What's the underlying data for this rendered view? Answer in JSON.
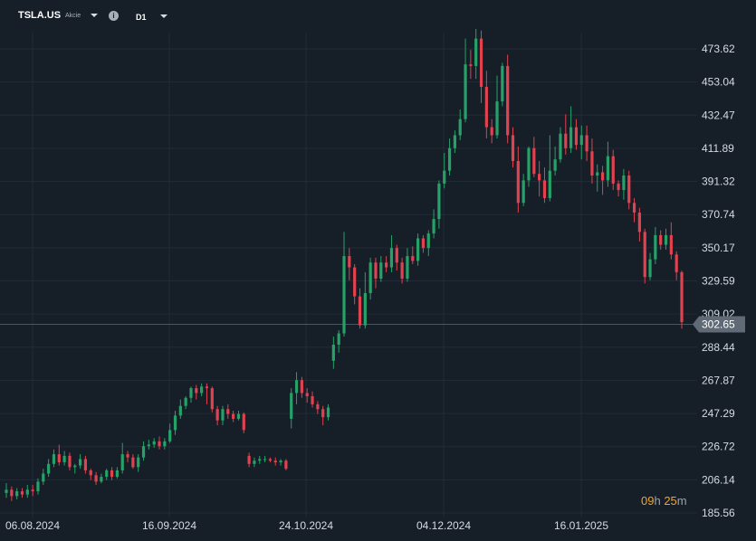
{
  "header": {
    "symbol": "TSLA.US",
    "symbol_type": "Akcie",
    "info_icon": "info-icon",
    "timeframe": "D1"
  },
  "price_tag": {
    "value": "302.65",
    "color": "#5f6a76"
  },
  "countdown": {
    "hours": "09",
    "hours_unit": "h",
    "minutes": "25",
    "minutes_unit": "m"
  },
  "colors": {
    "up": "#26a269",
    "down": "#e0424f",
    "background": "#161e27",
    "grid": "#222c37",
    "text": "#d5dbe2"
  },
  "chart_data": {
    "type": "candlestick",
    "ylim": [
      185.56,
      490
    ],
    "y_ticks": [
      "473.62",
      "453.04",
      "432.47",
      "411.89",
      "391.32",
      "370.74",
      "350.17",
      "329.59",
      "309.02",
      "288.44",
      "267.87",
      "247.29",
      "226.72",
      "206.14",
      "185.56"
    ],
    "x_ticks": [
      "06.08.2024",
      "16.09.2024",
      "24.10.2024",
      "04.12.2024",
      "16.01.2025"
    ],
    "candles": [
      [
        198,
        200,
        204,
        195
      ],
      [
        200,
        196,
        202,
        193
      ],
      [
        196,
        199,
        201,
        194
      ],
      [
        199,
        197,
        201,
        195
      ],
      [
        197,
        200,
        203,
        195
      ],
      [
        200,
        199,
        203,
        196
      ],
      [
        199,
        205,
        207,
        197
      ],
      [
        205,
        210,
        213,
        203
      ],
      [
        210,
        216,
        219,
        208
      ],
      [
        216,
        222,
        225,
        214
      ],
      [
        222,
        217,
        228,
        215
      ],
      [
        217,
        221,
        224,
        215
      ],
      [
        221,
        214,
        223,
        212
      ],
      [
        214,
        215,
        216,
        210
      ],
      [
        215,
        219,
        222,
        213
      ],
      [
        219,
        212,
        221,
        210
      ],
      [
        212,
        209,
        213,
        206
      ],
      [
        209,
        205,
        211,
        203
      ],
      [
        205,
        208,
        210,
        204
      ],
      [
        208,
        212,
        213,
        206
      ],
      [
        212,
        208,
        214,
        206
      ],
      [
        208,
        212,
        214,
        207
      ],
      [
        212,
        222,
        229,
        210
      ],
      [
        222,
        220,
        224,
        217
      ],
      [
        220,
        214,
        222,
        213
      ],
      [
        214,
        220,
        222,
        211
      ],
      [
        220,
        227,
        230,
        218
      ],
      [
        227,
        228,
        231,
        225
      ],
      [
        228,
        230,
        232,
        226
      ],
      [
        230,
        227,
        233,
        225
      ],
      [
        227,
        230,
        232,
        225
      ],
      [
        230,
        237,
        241,
        229
      ],
      [
        237,
        246,
        249,
        234
      ],
      [
        246,
        252,
        256,
        244
      ],
      [
        252,
        257,
        258,
        250
      ],
      [
        257,
        263,
        264,
        254
      ],
      [
        263,
        260,
        265,
        256
      ],
      [
        260,
        264,
        266,
        258
      ],
      [
        264,
        263,
        266,
        253
      ],
      [
        263,
        250,
        264,
        248
      ],
      [
        250,
        243,
        252,
        240
      ],
      [
        243,
        250,
        252,
        240
      ],
      [
        250,
        247,
        253,
        244
      ],
      [
        247,
        244,
        249,
        242
      ],
      [
        244,
        247,
        249,
        243
      ],
      [
        247,
        237,
        248,
        235
      ],
      [
        221,
        216,
        223,
        214
      ],
      [
        216,
        218,
        220,
        214
      ],
      [
        218,
        219,
        221,
        216
      ],
      [
        219,
        219,
        221,
        217
      ],
      [
        219,
        218,
        220,
        217
      ],
      [
        218,
        217,
        220,
        215
      ],
      [
        217,
        218,
        219,
        215
      ],
      [
        218,
        213,
        219,
        212
      ],
      [
        244,
        260,
        263,
        238
      ],
      [
        260,
        268,
        273,
        253
      ],
      [
        268,
        260,
        270,
        257
      ],
      [
        260,
        258,
        263,
        254
      ],
      [
        258,
        253,
        261,
        251
      ],
      [
        253,
        250,
        255,
        247
      ],
      [
        250,
        245,
        252,
        240
      ],
      [
        245,
        251,
        253,
        243
      ],
      [
        280,
        290,
        295,
        275
      ],
      [
        290,
        297,
        299,
        285
      ],
      [
        297,
        345,
        360,
        295
      ],
      [
        345,
        338,
        350,
        330
      ],
      [
        338,
        320,
        340,
        315
      ],
      [
        320,
        302,
        325,
        300
      ],
      [
        302,
        322,
        335,
        300
      ],
      [
        322,
        341,
        344,
        318
      ],
      [
        341,
        331,
        344,
        325
      ],
      [
        331,
        341,
        345,
        329
      ],
      [
        341,
        338,
        345,
        335
      ],
      [
        338,
        350,
        358,
        335
      ],
      [
        350,
        341,
        352,
        336
      ],
      [
        341,
        331,
        344,
        328
      ],
      [
        331,
        345,
        350,
        329
      ],
      [
        345,
        342,
        351,
        340
      ],
      [
        342,
        356,
        359,
        339
      ],
      [
        356,
        350,
        358,
        347
      ],
      [
        350,
        359,
        361,
        345
      ],
      [
        359,
        368,
        374,
        356
      ],
      [
        368,
        390,
        392,
        362
      ],
      [
        390,
        398,
        409,
        387
      ],
      [
        398,
        412,
        418,
        395
      ],
      [
        412,
        420,
        423,
        409
      ],
      [
        420,
        430,
        436,
        417
      ],
      [
        430,
        464,
        480,
        428
      ],
      [
        464,
        463,
        473,
        455
      ],
      [
        463,
        480,
        486,
        455
      ],
      [
        480,
        450,
        485,
        440
      ],
      [
        450,
        425,
        460,
        418
      ],
      [
        425,
        420,
        430,
        415
      ],
      [
        420,
        441,
        457,
        418
      ],
      [
        441,
        463,
        465,
        438
      ],
      [
        463,
        420,
        470,
        415
      ],
      [
        420,
        404,
        425,
        400
      ],
      [
        404,
        378,
        413,
        372
      ],
      [
        378,
        392,
        396,
        376
      ],
      [
        392,
        412,
        413,
        388
      ],
      [
        412,
        396,
        419,
        394
      ],
      [
        396,
        392,
        404,
        382
      ],
      [
        392,
        381,
        400,
        378
      ],
      [
        381,
        398,
        420,
        379
      ],
      [
        398,
        405,
        413,
        395
      ],
      [
        405,
        421,
        425,
        403
      ],
      [
        421,
        412,
        433,
        408
      ],
      [
        412,
        425,
        438,
        409
      ],
      [
        425,
        414,
        430,
        411
      ],
      [
        414,
        420,
        426,
        405
      ],
      [
        420,
        410,
        426,
        404
      ],
      [
        410,
        395,
        418,
        390
      ],
      [
        395,
        397,
        402,
        385
      ],
      [
        397,
        392,
        401,
        383
      ],
      [
        392,
        407,
        416,
        388
      ],
      [
        407,
        390,
        411,
        386
      ],
      [
        390,
        386,
        392,
        382
      ],
      [
        386,
        395,
        399,
        380
      ],
      [
        395,
        378,
        398,
        374
      ],
      [
        378,
        372,
        381,
        366
      ],
      [
        372,
        360,
        375,
        354
      ],
      [
        360,
        332,
        362,
        328
      ],
      [
        332,
        343,
        347,
        330
      ],
      [
        343,
        358,
        363,
        340
      ],
      [
        358,
        352,
        361,
        349
      ],
      [
        352,
        358,
        362,
        349
      ],
      [
        358,
        346,
        366,
        343
      ],
      [
        346,
        335,
        348,
        330
      ],
      [
        335,
        304,
        336,
        300
      ]
    ]
  }
}
